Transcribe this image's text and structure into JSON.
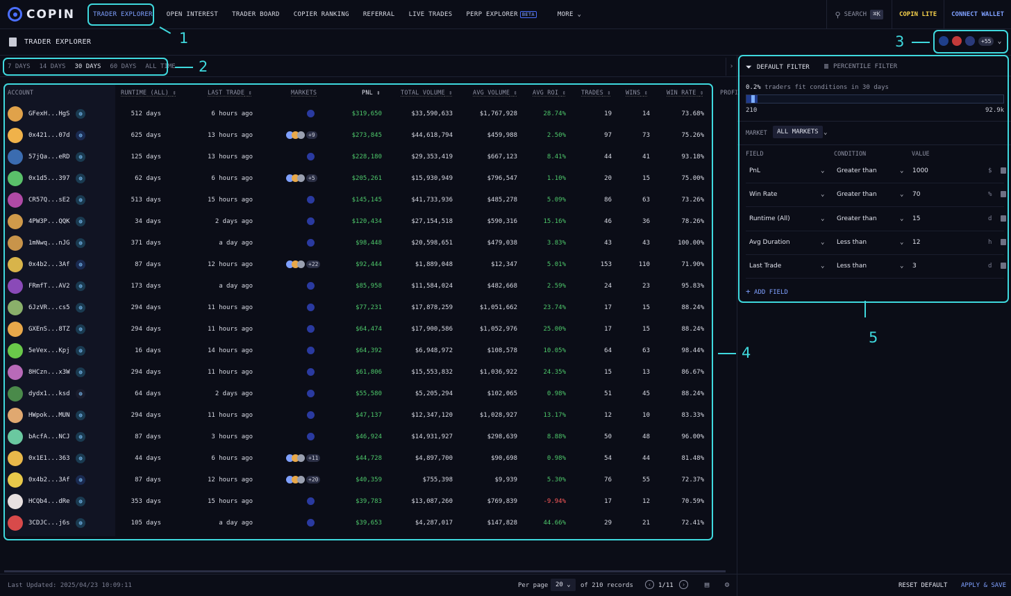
{
  "nav": {
    "logo": "COPIN",
    "items": [
      "TRADER EXPLORER",
      "OPEN INTEREST",
      "TRADER BOARD",
      "COPIER RANKING",
      "REFERRAL",
      "LIVE TRADES",
      "PERP EXPLORER"
    ],
    "beta": "BETA",
    "more": "MORE",
    "search": "SEARCH",
    "search_kbd": "⌘K",
    "lite": "COPIN LITE",
    "connect": "CONNECT WALLET"
  },
  "page": {
    "title": "TRADER EXPLORER",
    "protocols_more": "+55"
  },
  "time_filters": {
    "options": [
      "7 DAYS",
      "14 DAYS",
      "30 DAYS",
      "60 DAYS",
      "ALL TIME"
    ],
    "selected": "30 DAYS"
  },
  "table": {
    "headers": {
      "account": "ACCOUNT",
      "runtime": "RUNTIME (ALL)",
      "last_trade": "LAST TRADE",
      "markets": "MARKETS",
      "pnl": "PNL",
      "total_volume": "TOTAL VOLUME",
      "avg_volume": "AVG VOLUME",
      "avg_roi": "AVG ROI",
      "trades": "TRADES",
      "wins": "WINS",
      "win_rate": "WIN RATE",
      "profit": "PROFI"
    },
    "rows": [
      {
        "account": "GFexH...HgS",
        "runtime": "512 days",
        "last_trade": "6 hours ago",
        "markets_more": "",
        "pnl": "$319,650",
        "total_volume": "$33,590,633",
        "avg_volume": "$1,767,928",
        "avg_roi": "28.74%",
        "trades": "19",
        "wins": "14",
        "win_rate": "73.68%"
      },
      {
        "account": "0x421...07d",
        "runtime": "625 days",
        "last_trade": "13 hours ago",
        "markets_more": "+9",
        "pnl": "$273,845",
        "total_volume": "$44,618,794",
        "avg_volume": "$459,988",
        "avg_roi": "2.50%",
        "trades": "97",
        "wins": "73",
        "win_rate": "75.26%"
      },
      {
        "account": "57jQa...eRD",
        "runtime": "125 days",
        "last_trade": "13 hours ago",
        "markets_more": "",
        "pnl": "$228,180",
        "total_volume": "$29,353,419",
        "avg_volume": "$667,123",
        "avg_roi": "8.41%",
        "trades": "44",
        "wins": "41",
        "win_rate": "93.18%"
      },
      {
        "account": "0x1d5...397",
        "runtime": "62 days",
        "last_trade": "6 hours ago",
        "markets_more": "+5",
        "pnl": "$205,261",
        "total_volume": "$15,930,949",
        "avg_volume": "$796,547",
        "avg_roi": "1.10%",
        "trades": "20",
        "wins": "15",
        "win_rate": "75.00%"
      },
      {
        "account": "CR57Q...sE2",
        "runtime": "513 days",
        "last_trade": "15 hours ago",
        "markets_more": "",
        "pnl": "$145,145",
        "total_volume": "$41,733,936",
        "avg_volume": "$485,278",
        "avg_roi": "5.09%",
        "trades": "86",
        "wins": "63",
        "win_rate": "73.26%"
      },
      {
        "account": "4PW3P...QQK",
        "runtime": "34 days",
        "last_trade": "2 days ago",
        "markets_more": "",
        "pnl": "$120,434",
        "total_volume": "$27,154,518",
        "avg_volume": "$590,316",
        "avg_roi": "15.16%",
        "trades": "46",
        "wins": "36",
        "win_rate": "78.26%"
      },
      {
        "account": "1mNwq...nJG",
        "runtime": "371 days",
        "last_trade": "a day ago",
        "markets_more": "",
        "pnl": "$98,448",
        "total_volume": "$20,598,651",
        "avg_volume": "$479,038",
        "avg_roi": "3.83%",
        "trades": "43",
        "wins": "43",
        "win_rate": "100.00%"
      },
      {
        "account": "0x4b2...3Af",
        "runtime": "87 days",
        "last_trade": "12 hours ago",
        "markets_more": "+22",
        "pnl": "$92,444",
        "total_volume": "$1,889,048",
        "avg_volume": "$12,347",
        "avg_roi": "5.01%",
        "trades": "153",
        "wins": "110",
        "win_rate": "71.90%"
      },
      {
        "account": "FRmfT...AV2",
        "runtime": "173 days",
        "last_trade": "a day ago",
        "markets_more": "",
        "pnl": "$85,958",
        "total_volume": "$11,584,024",
        "avg_volume": "$482,668",
        "avg_roi": "2.59%",
        "trades": "24",
        "wins": "23",
        "win_rate": "95.83%"
      },
      {
        "account": "6JzVR...cs5",
        "runtime": "294 days",
        "last_trade": "11 hours ago",
        "markets_more": "",
        "pnl": "$77,231",
        "total_volume": "$17,878,259",
        "avg_volume": "$1,051,662",
        "avg_roi": "23.74%",
        "trades": "17",
        "wins": "15",
        "win_rate": "88.24%"
      },
      {
        "account": "GXEnS...8TZ",
        "runtime": "294 days",
        "last_trade": "11 hours ago",
        "markets_more": "",
        "pnl": "$64,474",
        "total_volume": "$17,900,586",
        "avg_volume": "$1,052,976",
        "avg_roi": "25.00%",
        "trades": "17",
        "wins": "15",
        "win_rate": "88.24%"
      },
      {
        "account": "5eVex...Kpj",
        "runtime": "16 days",
        "last_trade": "14 hours ago",
        "markets_more": "",
        "pnl": "$64,392",
        "total_volume": "$6,948,972",
        "avg_volume": "$108,578",
        "avg_roi": "10.05%",
        "trades": "64",
        "wins": "63",
        "win_rate": "98.44%"
      },
      {
        "account": "8HCzn...x3W",
        "runtime": "294 days",
        "last_trade": "11 hours ago",
        "markets_more": "",
        "pnl": "$61,806",
        "total_volume": "$15,553,832",
        "avg_volume": "$1,036,922",
        "avg_roi": "24.35%",
        "trades": "15",
        "wins": "13",
        "win_rate": "86.67%"
      },
      {
        "account": "dydx1...ksd",
        "runtime": "64 days",
        "last_trade": "2 days ago",
        "markets_more": "",
        "pnl": "$55,580",
        "total_volume": "$5,205,294",
        "avg_volume": "$102,065",
        "avg_roi": "0.98%",
        "trades": "51",
        "wins": "45",
        "win_rate": "88.24%"
      },
      {
        "account": "HWpok...MUN",
        "runtime": "294 days",
        "last_trade": "11 hours ago",
        "markets_more": "",
        "pnl": "$47,137",
        "total_volume": "$12,347,120",
        "avg_volume": "$1,028,927",
        "avg_roi": "13.17%",
        "trades": "12",
        "wins": "10",
        "win_rate": "83.33%"
      },
      {
        "account": "bAcfA...NCJ",
        "runtime": "87 days",
        "last_trade": "3 hours ago",
        "markets_more": "",
        "pnl": "$46,924",
        "total_volume": "$14,931,927",
        "avg_volume": "$298,639",
        "avg_roi": "8.88%",
        "trades": "50",
        "wins": "48",
        "win_rate": "96.00%"
      },
      {
        "account": "0x1E1...363",
        "runtime": "44 days",
        "last_trade": "6 hours ago",
        "markets_more": "+11",
        "pnl": "$44,728",
        "total_volume": "$4,897,700",
        "avg_volume": "$90,698",
        "avg_roi": "0.98%",
        "trades": "54",
        "wins": "44",
        "win_rate": "81.48%"
      },
      {
        "account": "0x4b2...3Af",
        "runtime": "87 days",
        "last_trade": "12 hours ago",
        "markets_more": "+20",
        "pnl": "$40,359",
        "total_volume": "$755,398",
        "avg_volume": "$9,939",
        "avg_roi": "5.30%",
        "trades": "76",
        "wins": "55",
        "win_rate": "72.37%"
      },
      {
        "account": "HCQb4...dRe",
        "runtime": "353 days",
        "last_trade": "15 hours ago",
        "markets_more": "",
        "pnl": "$39,783",
        "total_volume": "$13,087,260",
        "avg_volume": "$769,839",
        "avg_roi": "-9.94%",
        "trades": "17",
        "wins": "12",
        "win_rate": "70.59%"
      },
      {
        "account": "3CDJC...j6s",
        "runtime": "105 days",
        "last_trade": "a day ago",
        "markets_more": "",
        "pnl": "$39,653",
        "total_volume": "$4,287,017",
        "avg_volume": "$147,828",
        "avg_roi": "44.66%",
        "trades": "29",
        "wins": "21",
        "win_rate": "72.41%"
      }
    ]
  },
  "footer": {
    "last_updated": "Last Updated: 2025/04/23 10:09:11",
    "per_page_label": "Per page",
    "per_page": "20",
    "records": "of 210 records",
    "page": "1/11"
  },
  "filter_panel": {
    "tab_default": "DEFAULT FILTER",
    "tab_percentile": "PERCENTILE FILTER",
    "fit_pct": "0.2%",
    "fit_text": "traders fit conditions in 30 days",
    "fit_fraction": 0.0023,
    "bar_min": "210",
    "bar_max": "92.9k",
    "market_label": "MARKET",
    "market_value": "ALL MARKETS",
    "headers": {
      "field": "FIELD",
      "condition": "CONDITION",
      "value": "VALUE"
    },
    "rows": [
      {
        "field": "PnL",
        "condition": "Greater than",
        "value": "1000",
        "unit": "$"
      },
      {
        "field": "Win Rate",
        "condition": "Greater than",
        "value": "70",
        "unit": "%"
      },
      {
        "field": "Runtime (All)",
        "condition": "Greater than",
        "value": "15",
        "unit": "d"
      },
      {
        "field": "Avg Duration",
        "condition": "Less than",
        "value": "12",
        "unit": "h"
      },
      {
        "field": "Last Trade",
        "condition": "Less than",
        "value": "3",
        "unit": "d"
      }
    ],
    "add_field": "ADD FIELD",
    "reset": "RESET DEFAULT",
    "apply": "APPLY & SAVE"
  },
  "annotations": [
    "1",
    "2",
    "3",
    "4",
    "5"
  ],
  "colors": {
    "accent": "#4ee3e8",
    "positive": "#4ec96b",
    "negative": "#ff5b5b",
    "brand": "#4b6fff"
  }
}
